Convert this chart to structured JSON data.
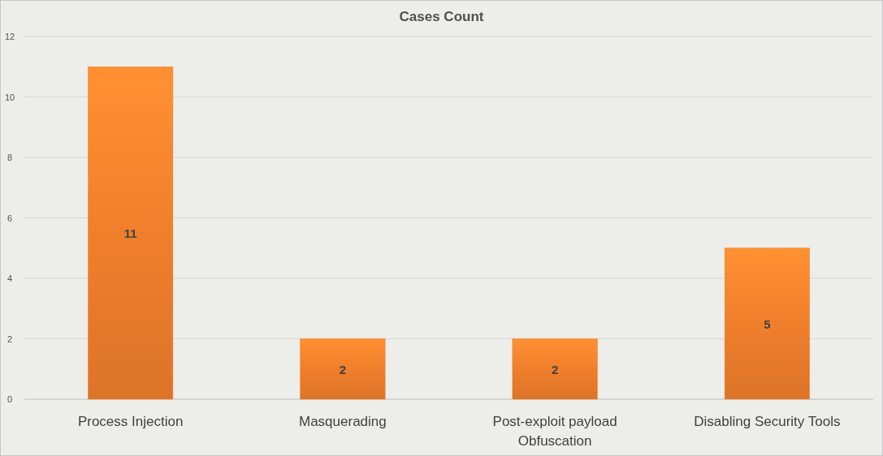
{
  "chart_data": {
    "type": "bar",
    "title": "Cases Count",
    "categories": [
      "Process Injection",
      "Masquerading",
      "Post-exploit payload Obfuscation",
      "Disabling Security Tools"
    ],
    "values": [
      11,
      2,
      2,
      5
    ],
    "color": "#f07f2c",
    "ylim": [
      0,
      12
    ],
    "yticks": [
      0,
      2,
      4,
      6,
      8,
      10,
      12
    ],
    "grid": "y",
    "data_labels": true
  }
}
